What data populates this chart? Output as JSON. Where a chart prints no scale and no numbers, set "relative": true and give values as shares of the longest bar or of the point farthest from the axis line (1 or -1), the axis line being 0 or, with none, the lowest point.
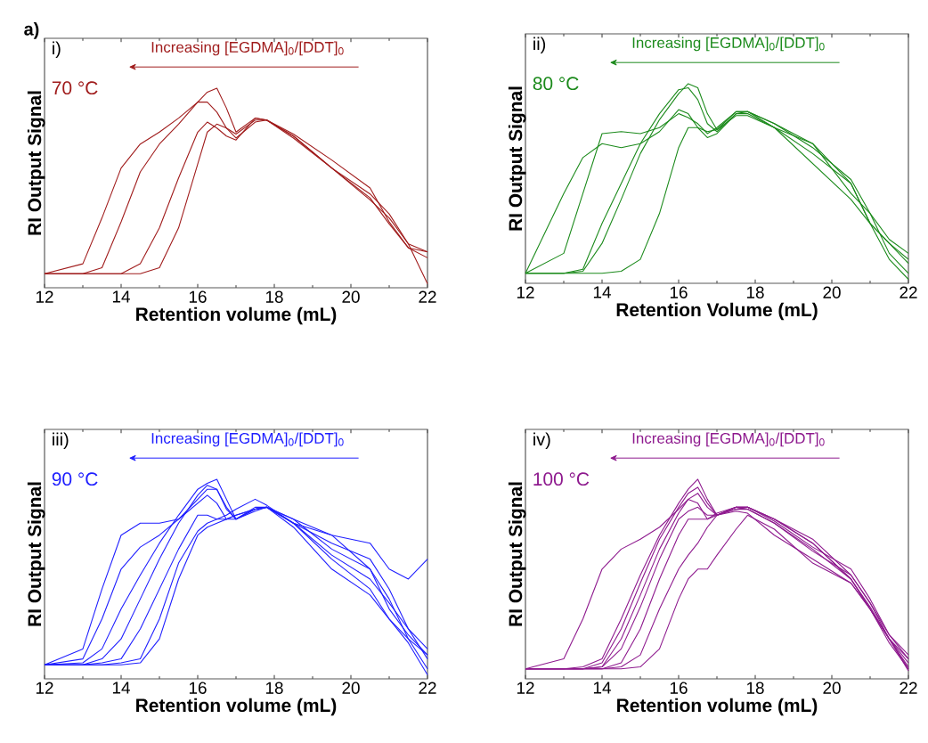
{
  "chart_data": [
    {
      "type": "line",
      "relative": true,
      "xlabel": "Retention volume (mL)",
      "ylabel": "RI Output Signal",
      "xlim": [
        12,
        22
      ],
      "xticks": [
        12,
        14,
        16,
        18,
        20,
        22
      ],
      "annotations": [
        "i)",
        "Increasing [EGDMA]$_{0}$/[DDT]$_{0}$",
        "70 °C",
        "a)"
      ],
      "x": [
        12,
        13,
        13.5,
        14,
        14.5,
        15,
        15.5,
        16,
        16.25,
        16.5,
        16.75,
        17,
        17.5,
        17.8,
        18.5,
        19.5,
        20.5,
        21,
        21.5,
        22
      ],
      "series": [
        {
          "color": "#a01c1c",
          "values": [
            0.07,
            0.12,
            0.35,
            0.6,
            0.72,
            0.78,
            0.85,
            0.93,
            0.93,
            0.88,
            0.8,
            0.75,
            0.83,
            0.84,
            0.77,
            0.64,
            0.5,
            0.33,
            0.2,
            0.15
          ]
        },
        {
          "color": "#a01c1c",
          "values": [
            0.07,
            0.07,
            0.1,
            0.33,
            0.58,
            0.72,
            0.82,
            0.93,
            0.98,
            1.0,
            0.9,
            0.78,
            0.85,
            0.84,
            0.76,
            0.6,
            0.45,
            0.32,
            0.2,
            0.18
          ]
        },
        {
          "color": "#a01c1c",
          "values": [
            0.07,
            0.07,
            0.07,
            0.07,
            0.12,
            0.3,
            0.55,
            0.78,
            0.83,
            0.8,
            0.76,
            0.74,
            0.85,
            0.84,
            0.76,
            0.6,
            0.44,
            0.35,
            0.22,
            0.02
          ]
        },
        {
          "color": "#a01c1c",
          "values": [
            0.07,
            0.07,
            0.07,
            0.07,
            0.07,
            0.1,
            0.3,
            0.62,
            0.78,
            0.82,
            0.8,
            0.77,
            0.84,
            0.84,
            0.75,
            0.6,
            0.47,
            0.37,
            0.22,
            0.18
          ]
        }
      ]
    },
    {
      "type": "line",
      "relative": true,
      "xlabel": "Retention Volume (mL)",
      "ylabel": "RI Output Signal",
      "xlim": [
        12,
        22
      ],
      "xticks": [
        12,
        14,
        16,
        18,
        20,
        22
      ],
      "annotations": [
        "ii)",
        "Increasing [EGDMA]$_{0}$/[DDT]$_{0}$",
        "80 °C"
      ],
      "x": [
        12,
        13,
        13.5,
        14,
        14.5,
        15,
        15.5,
        16,
        16.25,
        16.5,
        16.75,
        17,
        17.5,
        17.8,
        18.5,
        19.5,
        20.5,
        21,
        21.5,
        22
      ],
      "series": [
        {
          "color": "#1b8a1b",
          "values": [
            0.05,
            0.45,
            0.63,
            0.7,
            0.68,
            0.7,
            0.76,
            0.87,
            0.85,
            0.78,
            0.73,
            0.75,
            0.85,
            0.85,
            0.78,
            0.6,
            0.42,
            0.3,
            0.12,
            0.02
          ]
        },
        {
          "color": "#1b8a1b",
          "values": [
            0.05,
            0.15,
            0.45,
            0.75,
            0.76,
            0.75,
            0.78,
            0.85,
            0.83,
            0.8,
            0.75,
            0.78,
            0.86,
            0.86,
            0.8,
            0.7,
            0.45,
            0.35,
            0.15,
            0.05
          ]
        },
        {
          "color": "#1b8a1b",
          "values": [
            0.05,
            0.05,
            0.07,
            0.3,
            0.5,
            0.7,
            0.85,
            0.97,
            0.98,
            0.92,
            0.8,
            0.76,
            0.85,
            0.86,
            0.78,
            0.65,
            0.5,
            0.3,
            0.2,
            0.1
          ]
        },
        {
          "color": "#1b8a1b",
          "values": [
            0.05,
            0.05,
            0.06,
            0.2,
            0.42,
            0.65,
            0.82,
            0.95,
            1.0,
            0.98,
            0.85,
            0.77,
            0.86,
            0.86,
            0.8,
            0.68,
            0.52,
            0.35,
            0.22,
            0.15
          ]
        },
        {
          "color": "#1b8a1b",
          "values": [
            0.05,
            0.05,
            0.05,
            0.05,
            0.06,
            0.12,
            0.35,
            0.68,
            0.78,
            0.78,
            0.76,
            0.77,
            0.84,
            0.84,
            0.78,
            0.7,
            0.5,
            0.3,
            0.2,
            0.12
          ]
        }
      ]
    },
    {
      "type": "line",
      "relative": true,
      "xlabel": "Retention volume (mL)",
      "ylabel": "RI Output Signal",
      "xlim": [
        12,
        22
      ],
      "xticks": [
        12,
        14,
        16,
        18,
        20,
        22
      ],
      "annotations": [
        "iii)",
        "Increasing [EGDMA]$_{0}$/[DDT]$_{0}$",
        "90 °C"
      ],
      "x": [
        12,
        13,
        13.5,
        14,
        14.5,
        15,
        15.5,
        16,
        16.25,
        16.5,
        16.75,
        17,
        17.5,
        17.8,
        18.5,
        19.5,
        20.5,
        21,
        21.5,
        22
      ],
      "series": [
        {
          "color": "#1f1fff",
          "values": [
            0.07,
            0.15,
            0.45,
            0.72,
            0.78,
            0.78,
            0.8,
            0.88,
            0.92,
            0.88,
            0.8,
            0.8,
            0.85,
            0.86,
            0.78,
            0.68,
            0.6,
            0.45,
            0.25,
            0.15
          ]
        },
        {
          "color": "#1f1fff",
          "values": [
            0.07,
            0.1,
            0.3,
            0.55,
            0.66,
            0.72,
            0.8,
            0.9,
            0.95,
            0.95,
            0.85,
            0.8,
            0.84,
            0.86,
            0.8,
            0.72,
            0.55,
            0.35,
            0.22,
            0.12
          ]
        },
        {
          "color": "#1f1fff",
          "values": [
            0.07,
            0.08,
            0.15,
            0.35,
            0.52,
            0.68,
            0.82,
            0.95,
            0.98,
            1.0,
            0.9,
            0.8,
            0.85,
            0.86,
            0.8,
            0.65,
            0.55,
            0.4,
            0.2,
            0.05
          ]
        },
        {
          "color": "#1f1fff",
          "values": [
            0.07,
            0.07,
            0.1,
            0.2,
            0.4,
            0.6,
            0.78,
            0.92,
            0.97,
            0.95,
            0.86,
            0.8,
            0.86,
            0.86,
            0.78,
            0.62,
            0.5,
            0.38,
            0.25,
            0.1
          ]
        },
        {
          "color": "#1f1fff",
          "values": [
            0.07,
            0.07,
            0.08,
            0.1,
            0.25,
            0.45,
            0.65,
            0.82,
            0.82,
            0.8,
            0.8,
            0.82,
            0.85,
            0.86,
            0.78,
            0.6,
            0.45,
            0.3,
            0.18,
            0.02
          ]
        },
        {
          "color": "#1f1fff",
          "values": [
            0.07,
            0.07,
            0.07,
            0.08,
            0.1,
            0.3,
            0.58,
            0.74,
            0.78,
            0.8,
            0.82,
            0.85,
            0.9,
            0.87,
            0.78,
            0.72,
            0.68,
            0.55,
            0.5,
            0.6
          ]
        },
        {
          "color": "#1f1fff",
          "values": [
            0.07,
            0.07,
            0.07,
            0.07,
            0.08,
            0.2,
            0.5,
            0.72,
            0.76,
            0.78,
            0.8,
            0.82,
            0.85,
            0.86,
            0.76,
            0.55,
            0.42,
            0.3,
            0.2,
            0.12
          ]
        }
      ]
    },
    {
      "type": "line",
      "relative": true,
      "xlabel": "Retention volume (mL)",
      "ylabel": "RI Output Signal",
      "xlim": [
        12,
        22
      ],
      "xticks": [
        12,
        14,
        16,
        18,
        20,
        22
      ],
      "annotations": [
        "iv)",
        "Increasing [EGDMA]$_{0}$/[DDT]$_{0}$",
        "100 °C"
      ],
      "x": [
        12,
        13,
        13.5,
        14,
        14.5,
        15,
        15.5,
        16,
        16.25,
        16.5,
        16.75,
        17,
        17.5,
        17.8,
        18.5,
        19.5,
        20.5,
        21,
        21.5,
        22
      ],
      "series": [
        {
          "color": "#8e1a8e",
          "values": [
            0.05,
            0.1,
            0.3,
            0.55,
            0.65,
            0.7,
            0.76,
            0.85,
            0.9,
            0.88,
            0.8,
            0.82,
            0.86,
            0.86,
            0.8,
            0.68,
            0.5,
            0.35,
            0.2,
            0.05
          ]
        },
        {
          "color": "#8e1a8e",
          "values": [
            0.05,
            0.05,
            0.06,
            0.1,
            0.3,
            0.52,
            0.72,
            0.88,
            0.95,
            1.0,
            0.9,
            0.82,
            0.86,
            0.86,
            0.8,
            0.7,
            0.52,
            0.38,
            0.22,
            0.1
          ]
        },
        {
          "color": "#8e1a8e",
          "values": [
            0.05,
            0.05,
            0.05,
            0.08,
            0.25,
            0.48,
            0.7,
            0.86,
            0.93,
            0.96,
            0.88,
            0.82,
            0.85,
            0.86,
            0.8,
            0.68,
            0.5,
            0.35,
            0.2,
            0.08
          ]
        },
        {
          "color": "#8e1a8e",
          "values": [
            0.05,
            0.05,
            0.05,
            0.06,
            0.2,
            0.42,
            0.65,
            0.83,
            0.9,
            0.93,
            0.86,
            0.82,
            0.86,
            0.86,
            0.79,
            0.66,
            0.55,
            0.4,
            0.22,
            0.12
          ]
        },
        {
          "color": "#8e1a8e",
          "values": [
            0.05,
            0.05,
            0.05,
            0.06,
            0.15,
            0.36,
            0.6,
            0.8,
            0.84,
            0.86,
            0.82,
            0.82,
            0.85,
            0.85,
            0.78,
            0.65,
            0.5,
            0.36,
            0.2,
            0.06
          ]
        },
        {
          "color": "#8e1a8e",
          "values": [
            0.05,
            0.05,
            0.05,
            0.05,
            0.08,
            0.25,
            0.5,
            0.72,
            0.8,
            0.8,
            0.8,
            0.83,
            0.86,
            0.85,
            0.78,
            0.64,
            0.52,
            0.38,
            0.2,
            0.1
          ]
        },
        {
          "color": "#8e1a8e",
          "values": [
            0.05,
            0.05,
            0.05,
            0.05,
            0.06,
            0.12,
            0.35,
            0.55,
            0.62,
            0.68,
            0.76,
            0.82,
            0.84,
            0.83,
            0.72,
            0.6,
            0.48,
            0.35,
            0.2,
            0.04
          ]
        },
        {
          "color": "#8e1a8e",
          "values": [
            0.05,
            0.05,
            0.05,
            0.05,
            0.05,
            0.06,
            0.15,
            0.4,
            0.5,
            0.55,
            0.55,
            0.62,
            0.75,
            0.82,
            0.75,
            0.58,
            0.48,
            0.35,
            0.18,
            0.05
          ]
        }
      ]
    }
  ]
}
